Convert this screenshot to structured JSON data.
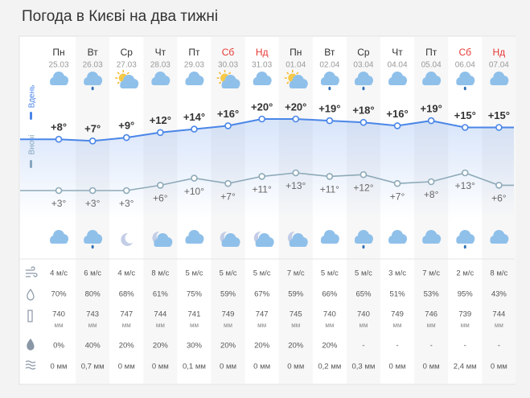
{
  "header": {
    "title": "Погода в Києві на два тижні"
  },
  "side_labels": {
    "day": "Вдень",
    "night": "Вночі"
  },
  "weekdays": [
    "Пн",
    "Вт",
    "Ср",
    "Чт",
    "Пт",
    "Сб",
    "Нд",
    "Пн",
    "Вт",
    "Ср",
    "Чт",
    "Пт",
    "Сб",
    "Нд"
  ],
  "dates": [
    "25.03",
    "26.03",
    "27.03",
    "28.03",
    "29.03",
    "30.03",
    "31.03",
    "01.04",
    "02.04",
    "03.04",
    "04.04",
    "05.04",
    "06.04",
    "07.04"
  ],
  "weekend": [
    false,
    false,
    false,
    false,
    false,
    true,
    true,
    false,
    false,
    false,
    false,
    false,
    true,
    true
  ],
  "weekend_color": "#e53935",
  "day_icons": [
    "cloud",
    "cloud-rain",
    "sun-cloud",
    "cloud",
    "cloud",
    "sun-cloud",
    "cloud",
    "sun-cloud",
    "cloud-rain",
    "cloud-rain",
    "cloud",
    "cloud",
    "cloud-rain",
    "cloud"
  ],
  "night_icons": [
    "cloud",
    "cloud-rain",
    "moon",
    "moon-cloud",
    "cloud",
    "moon-cloud",
    "moon-cloud",
    "moon-cloud",
    "cloud",
    "cloud-rain",
    "cloud",
    "cloud",
    "cloud-rain",
    "cloud"
  ],
  "day_temperature": {
    "color": "#4a86e8",
    "values": [
      8,
      7,
      9,
      12,
      14,
      16,
      20,
      20,
      19,
      18,
      16,
      19,
      15,
      15
    ],
    "value_labels": [
      "+8°",
      "+7°",
      "+9°",
      "+12°",
      "+14°",
      "+16°",
      "+20°",
      "+20°",
      "+19°",
      "+18°",
      "+16°",
      "+19°",
      "+15°",
      "+15°"
    ]
  },
  "night_temperature": {
    "color": "#8eaab8",
    "values": [
      3,
      3,
      3,
      6,
      10,
      7,
      11,
      13,
      11,
      12,
      7,
      8,
      13,
      6
    ],
    "value_labels": [
      "+3°",
      "+3°",
      "+3°",
      "+6°",
      "+10°",
      "+7°",
      "+11°",
      "+13°",
      "+11°",
      "+12°",
      "+7°",
      "+8°",
      "+13°",
      "+6°"
    ]
  },
  "wind": [
    "4 м/с",
    "6 м/с",
    "4 м/с",
    "8 м/с",
    "5 м/с",
    "5 м/с",
    "5 м/с",
    "7 м/с",
    "5 м/с",
    "5 м/с",
    "3 м/с",
    "7 м/с",
    "2 м/с",
    "8 м/с"
  ],
  "humidity": [
    "70%",
    "80%",
    "68%",
    "61%",
    "75%",
    "59%",
    "67%",
    "59%",
    "66%",
    "65%",
    "51%",
    "53%",
    "95%",
    "43%"
  ],
  "pressure": [
    {
      "value": 740,
      "unit": "мм"
    },
    {
      "value": 743,
      "unit": "мм"
    },
    {
      "value": 747,
      "unit": "мм"
    },
    {
      "value": 744,
      "unit": "мм"
    },
    {
      "value": 741,
      "unit": "мм"
    },
    {
      "value": 749,
      "unit": "мм"
    },
    {
      "value": 747,
      "unit": "мм"
    },
    {
      "value": 745,
      "unit": "мм"
    },
    {
      "value": 740,
      "unit": "мм"
    },
    {
      "value": 740,
      "unit": "мм"
    },
    {
      "value": 749,
      "unit": "мм"
    },
    {
      "value": 746,
      "unit": "мм"
    },
    {
      "value": 739,
      "unit": "мм"
    },
    {
      "value": 744,
      "unit": "мм"
    }
  ],
  "precipitation_probability": [
    "0%",
    "40%",
    "20%",
    "20%",
    "30%",
    "20%",
    "20%",
    "20%",
    "20%",
    "-",
    "-",
    "-",
    "-",
    "-"
  ],
  "precipitation": [
    "0 мм",
    "0,7 мм",
    "0 мм",
    "0 мм",
    "0,1 мм",
    "0 мм",
    "0 мм",
    "0 мм",
    "0,2 мм",
    "0,3 мм",
    "0 мм",
    "0 мм",
    "2,4 мм",
    "0 мм"
  ]
}
